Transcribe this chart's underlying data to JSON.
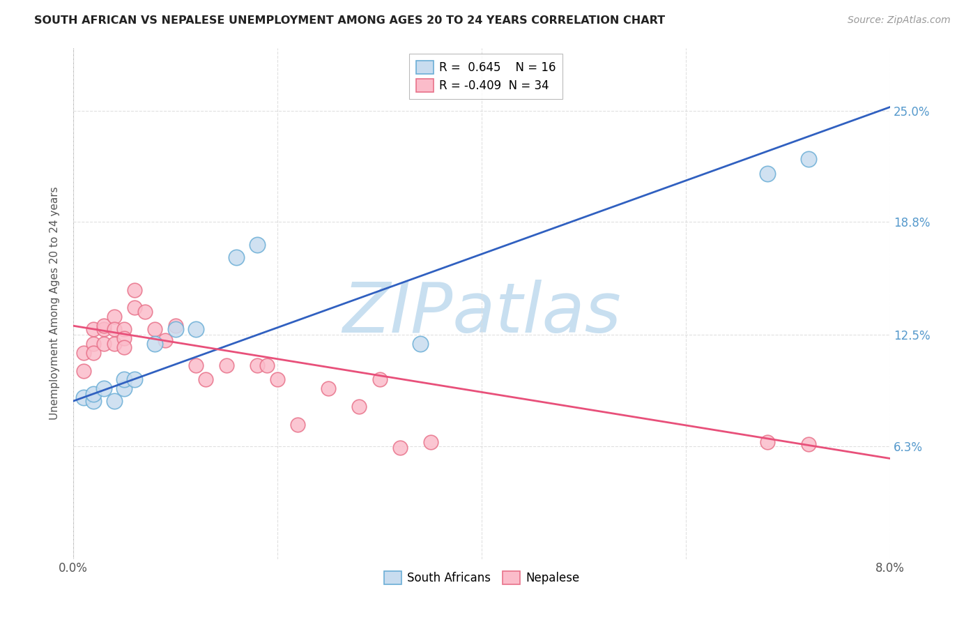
{
  "title": "SOUTH AFRICAN VS NEPALESE UNEMPLOYMENT AMONG AGES 20 TO 24 YEARS CORRELATION CHART",
  "source": "Source: ZipAtlas.com",
  "ylabel": "Unemployment Among Ages 20 to 24 years",
  "xmin": 0.0,
  "xmax": 0.08,
  "ymin": 0.0,
  "ymax": 0.285,
  "yticks": [
    0.063,
    0.125,
    0.188,
    0.25
  ],
  "ytick_labels": [
    "6.3%",
    "12.5%",
    "18.8%",
    "25.0%"
  ],
  "sa_R": 0.645,
  "sa_N": 16,
  "nep_R": -0.409,
  "nep_N": 34,
  "sa_color": "#C8DCEF",
  "sa_edge_color": "#6BAED6",
  "nep_color": "#FBBCCA",
  "nep_edge_color": "#E8728A",
  "line_sa_color": "#3060C0",
  "line_nep_color": "#E8507A",
  "watermark_color": "#C8DFF0",
  "background_color": "#FFFFFF",
  "grid_color": "#DDDDDD",
  "south_african_x": [
    0.001,
    0.002,
    0.002,
    0.003,
    0.004,
    0.005,
    0.005,
    0.006,
    0.008,
    0.01,
    0.012,
    0.016,
    0.018,
    0.034,
    0.068,
    0.072
  ],
  "south_african_y": [
    0.09,
    0.088,
    0.092,
    0.095,
    0.088,
    0.095,
    0.1,
    0.1,
    0.12,
    0.128,
    0.128,
    0.168,
    0.175,
    0.12,
    0.215,
    0.223
  ],
  "nepalese_x": [
    0.001,
    0.001,
    0.002,
    0.002,
    0.002,
    0.003,
    0.003,
    0.003,
    0.004,
    0.004,
    0.004,
    0.005,
    0.005,
    0.005,
    0.006,
    0.006,
    0.007,
    0.008,
    0.009,
    0.01,
    0.012,
    0.013,
    0.015,
    0.018,
    0.019,
    0.02,
    0.022,
    0.025,
    0.028,
    0.03,
    0.032,
    0.035,
    0.068,
    0.072
  ],
  "nepalese_y": [
    0.105,
    0.115,
    0.12,
    0.128,
    0.115,
    0.128,
    0.12,
    0.13,
    0.135,
    0.128,
    0.12,
    0.128,
    0.123,
    0.118,
    0.15,
    0.14,
    0.138,
    0.128,
    0.122,
    0.13,
    0.108,
    0.1,
    0.108,
    0.108,
    0.108,
    0.1,
    0.075,
    0.095,
    0.085,
    0.1,
    0.062,
    0.065,
    0.065,
    0.064
  ],
  "sa_line_x0": 0.0,
  "sa_line_y0": 0.088,
  "sa_line_x1": 0.08,
  "sa_line_y1": 0.252,
  "nep_line_x0": 0.0,
  "nep_line_y0": 0.13,
  "nep_line_x1": 0.08,
  "nep_line_y1": 0.056
}
